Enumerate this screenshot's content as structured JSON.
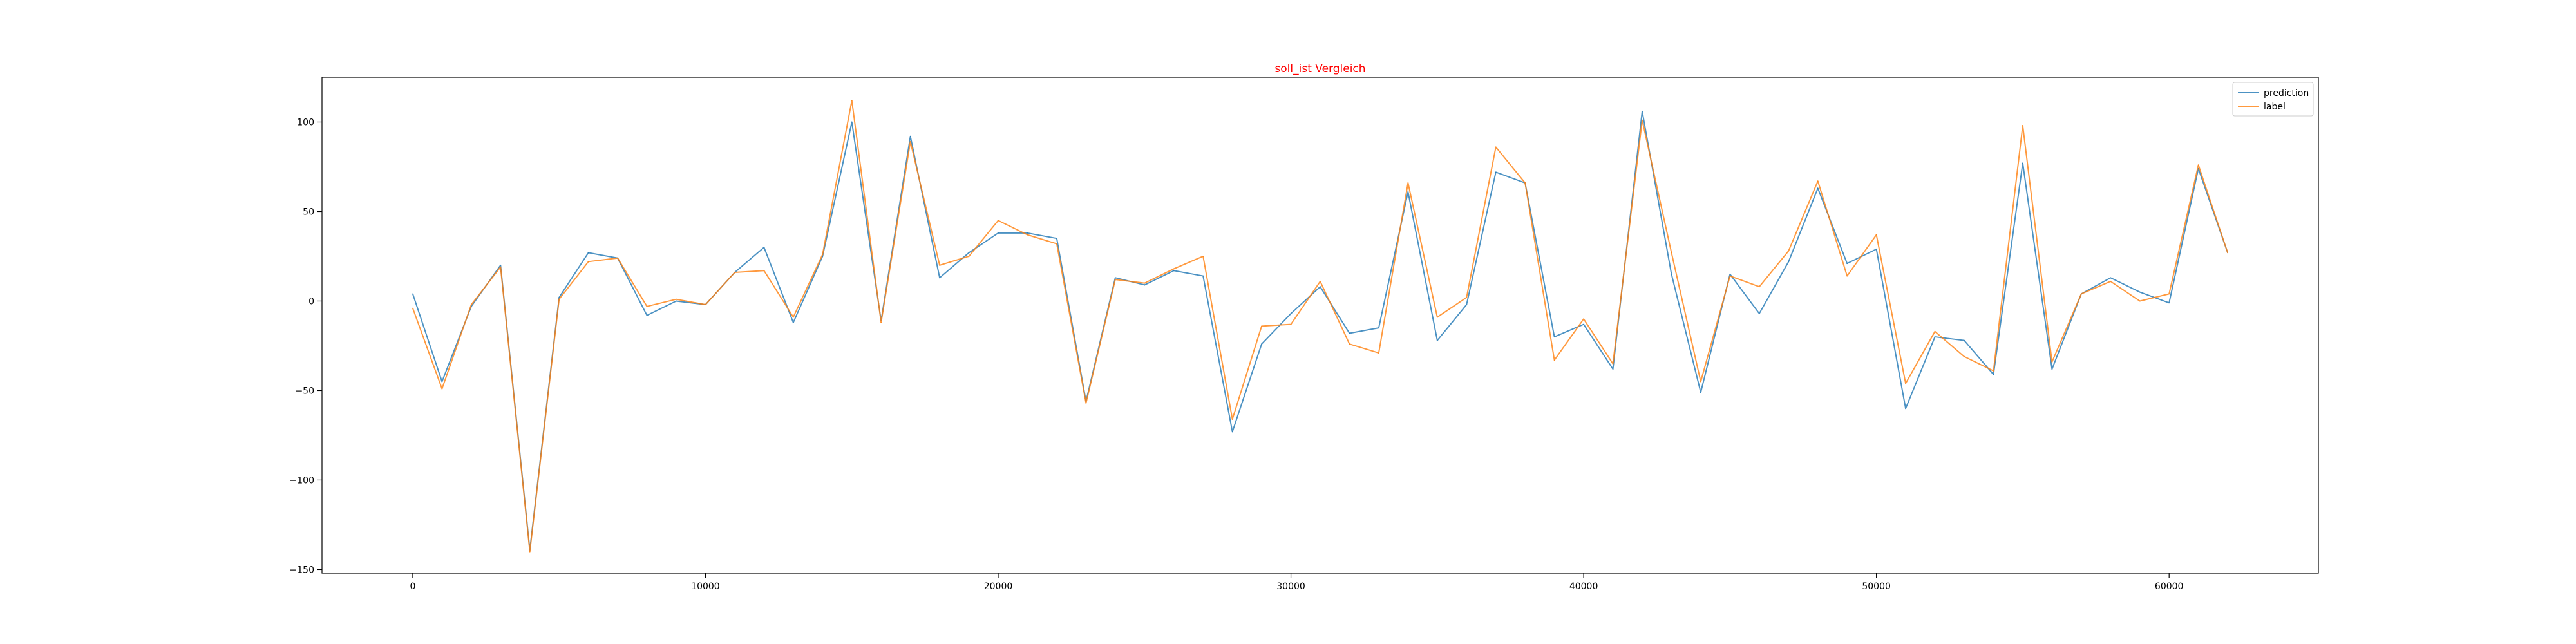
{
  "chart_data": {
    "type": "line",
    "title": "soll_ist Vergleich",
    "title_color": "#ff0000",
    "xlabel": "",
    "ylabel": "",
    "xlim": [
      -3100,
      65100
    ],
    "ylim": [
      -152,
      125
    ],
    "x_ticks": [
      0,
      10000,
      20000,
      30000,
      40000,
      50000,
      60000
    ],
    "y_ticks": [
      -150,
      -100,
      -50,
      0,
      50,
      100
    ],
    "grid": false,
    "legend_position": "upper right",
    "x": [
      0,
      1000,
      2000,
      3000,
      4000,
      5000,
      6000,
      7000,
      8000,
      9000,
      10000,
      11000,
      12000,
      13000,
      14000,
      15000,
      16000,
      17000,
      18000,
      19000,
      20000,
      21000,
      22000,
      23000,
      24000,
      25000,
      26000,
      27000,
      28000,
      29000,
      30000,
      31000,
      32000,
      33000,
      34000,
      35000,
      36000,
      37000,
      38000,
      39000,
      40000,
      41000,
      42000,
      43000,
      44000,
      45000,
      46000,
      47000,
      48000,
      49000,
      50000,
      51000,
      52000,
      53000,
      54000,
      55000,
      56000,
      57000,
      58000,
      59000,
      60000,
      61000,
      62000
    ],
    "series": [
      {
        "name": "prediction",
        "color": "#1f77b4",
        "values": [
          4,
          -45,
          -3,
          20,
          -139,
          2,
          27,
          24,
          -8,
          0,
          -2,
          16,
          30,
          -12,
          25,
          100,
          -11,
          92,
          13,
          27,
          38,
          38,
          35,
          -56,
          13,
          9,
          17,
          14,
          -73,
          -24,
          -7,
          8,
          -18,
          -15,
          61,
          -22,
          -2,
          72,
          66,
          -20,
          -13,
          -38,
          106,
          15,
          -51,
          15,
          -7,
          22,
          63,
          21,
          29,
          -60,
          -20,
          -22,
          -41,
          77,
          -38,
          4,
          13,
          5,
          -1,
          74,
          27
        ]
      },
      {
        "name": "label",
        "color": "#ff7f0e",
        "values": [
          -4,
          -49,
          -2,
          19,
          -140,
          1,
          22,
          24,
          -3,
          1,
          -2,
          16,
          17,
          -9,
          26,
          112,
          -12,
          89,
          20,
          25,
          45,
          37,
          32,
          -57,
          12,
          10,
          18,
          25,
          -66,
          -14,
          -13,
          11,
          -24,
          -29,
          66,
          -9,
          2,
          86,
          66,
          -33,
          -10,
          -35,
          101,
          27,
          -45,
          14,
          8,
          28,
          67,
          14,
          37,
          -46,
          -17,
          -31,
          -39,
          98,
          -34,
          4,
          11,
          0,
          4,
          76,
          27
        ]
      }
    ]
  }
}
